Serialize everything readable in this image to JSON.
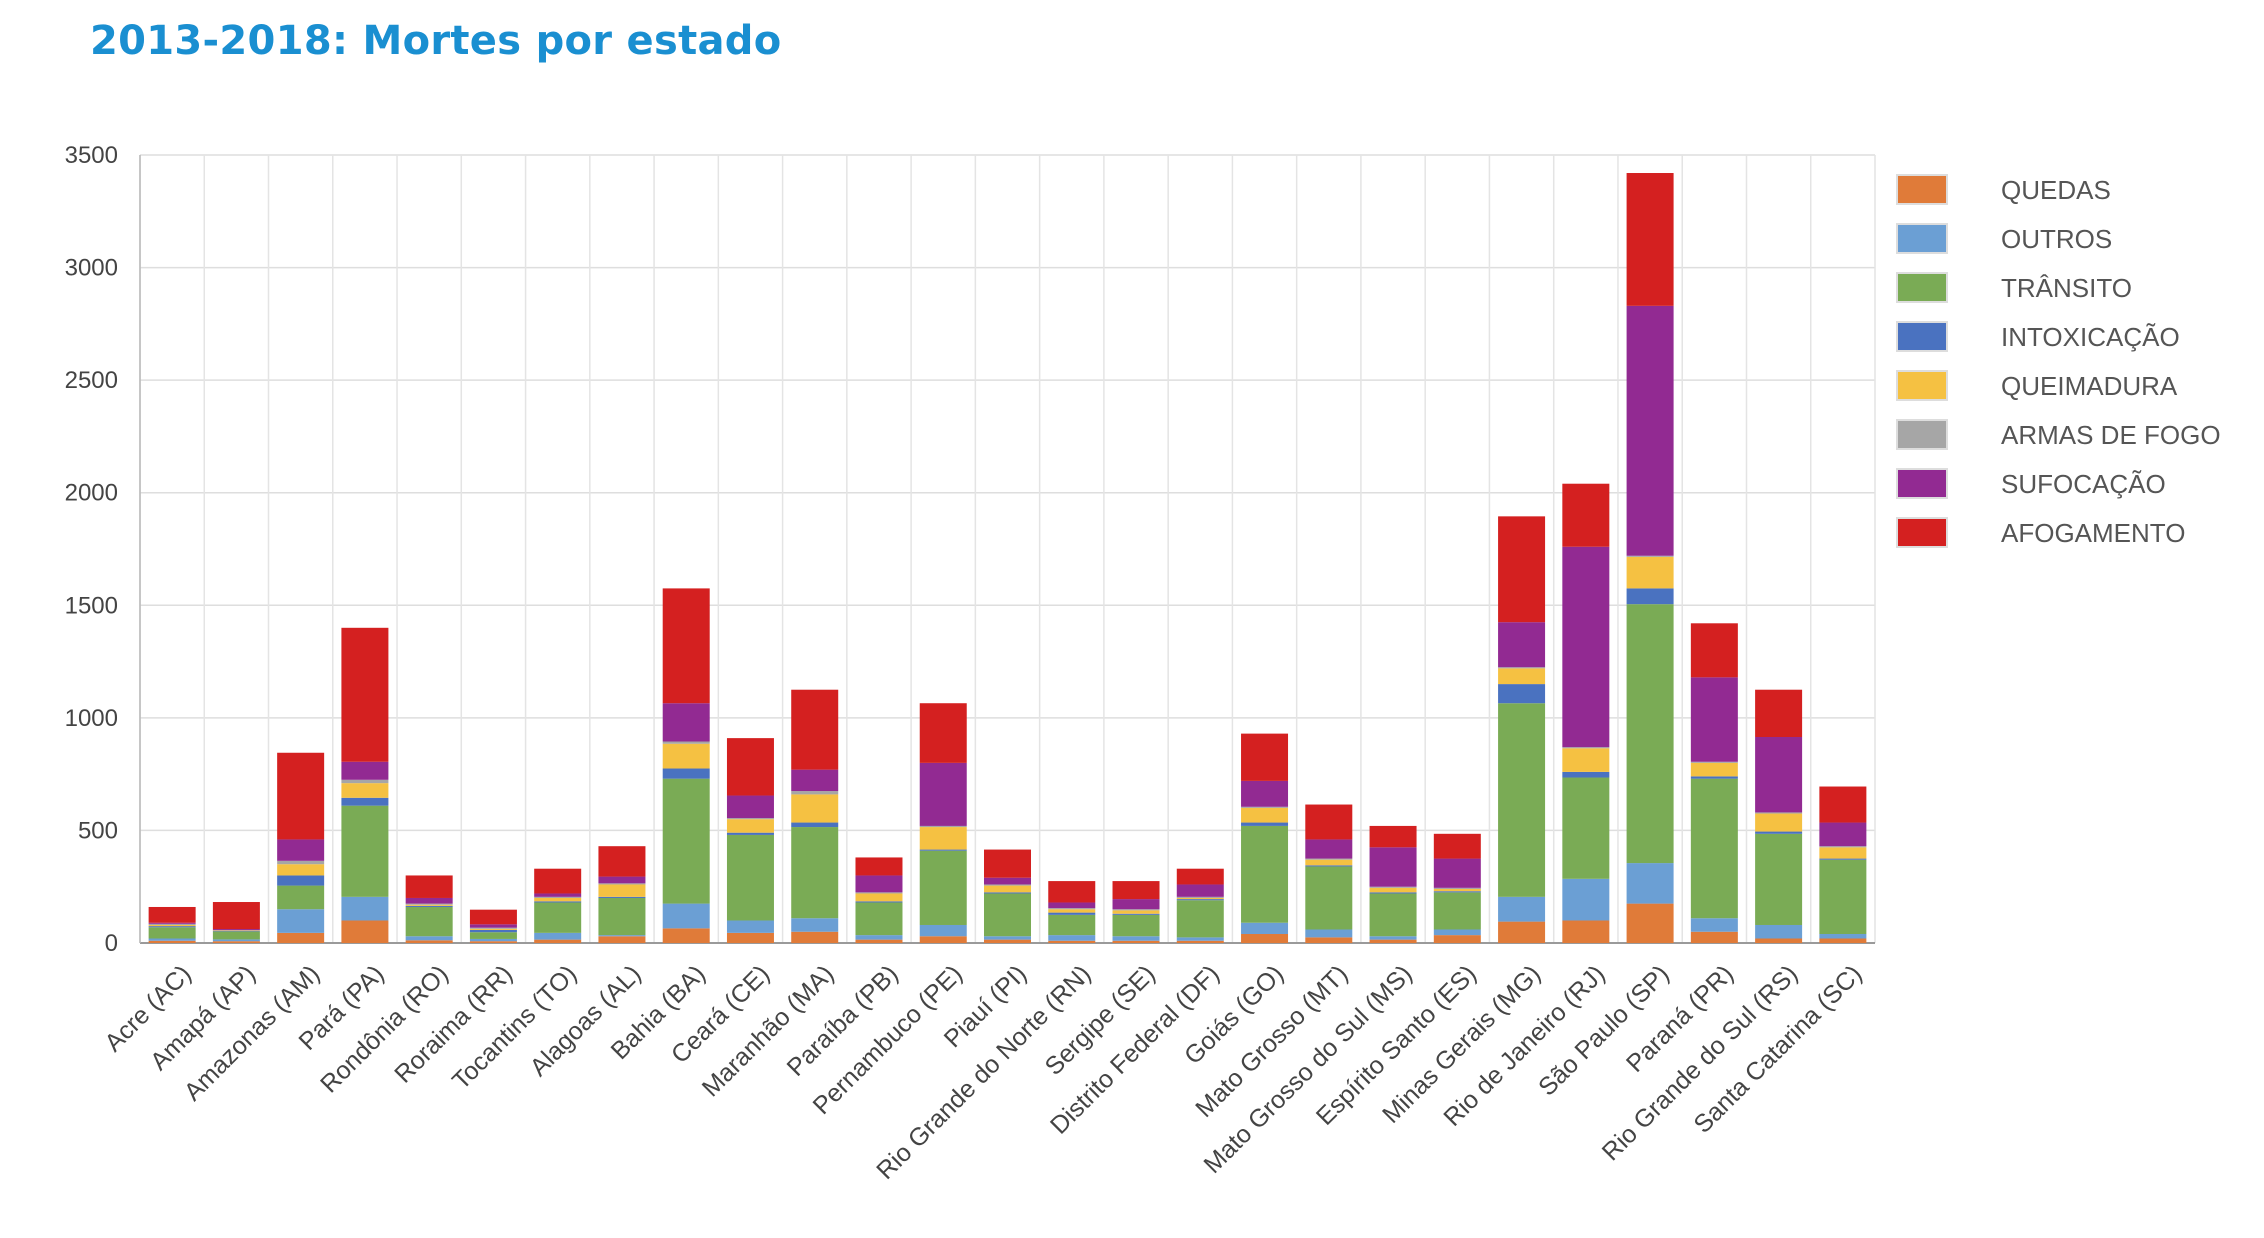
{
  "title": "2013-2018: Mortes por estado",
  "chart_data": {
    "type": "bar",
    "stacked": true,
    "ylim": [
      0,
      3500
    ],
    "yticks": [
      0,
      500,
      1000,
      1500,
      2000,
      2500,
      3000,
      3500
    ],
    "grid": true,
    "legend_position": "right",
    "categories": [
      "Acre (AC)",
      "Amapá (AP)",
      "Amazonas (AM)",
      "Pará (PA)",
      "Rondônia (RO)",
      "Roraima (RR)",
      "Tocantins (TO)",
      "Alagoas (AL)",
      "Bahia (BA)",
      "Ceará (CE)",
      "Maranhão (MA)",
      "Paraíba (PB)",
      "Pernambuco (PE)",
      "Piauí (PI)",
      "Rio Grande do Norte (RN)",
      "Sergipe (SE)",
      "Distrito Federal (DF)",
      "Goiás (GO)",
      "Mato Grosso (MT)",
      "Mato Grosso do Sul (MS)",
      "Espírito Santo (ES)",
      "Minas Gerais (MG)",
      "Rio de Janeiro (RJ)",
      "São Paulo (SP)",
      "Paraná (PR)",
      "Rio Grande do Sul (RS)",
      "Santa Catarina (SC)"
    ],
    "series": [
      {
        "name": "QUEDAS",
        "color": "#e07b39",
        "values": [
          10,
          8,
          45,
          100,
          12,
          8,
          15,
          30,
          65,
          45,
          50,
          15,
          30,
          15,
          10,
          10,
          10,
          40,
          25,
          15,
          35,
          95,
          100,
          175,
          50,
          20,
          20
        ]
      },
      {
        "name": "OUTROS",
        "color": "#6b9fd4",
        "values": [
          10,
          8,
          105,
          105,
          18,
          10,
          30,
          5,
          110,
          55,
          60,
          20,
          50,
          15,
          25,
          20,
          15,
          50,
          35,
          15,
          25,
          110,
          185,
          180,
          60,
          60,
          20
        ]
      },
      {
        "name": "TRÂNSITO",
        "color": "#7aab55",
        "values": [
          50,
          35,
          105,
          405,
          130,
          30,
          135,
          165,
          555,
          380,
          405,
          145,
          330,
          190,
          90,
          95,
          165,
          430,
          280,
          190,
          165,
          860,
          450,
          1150,
          620,
          405,
          330
        ]
      },
      {
        "name": "INTOXICAÇÃO",
        "color": "#4a72c0",
        "values": [
          5,
          2,
          45,
          35,
          5,
          10,
          5,
          5,
          45,
          10,
          20,
          5,
          5,
          5,
          10,
          5,
          5,
          15,
          5,
          5,
          5,
          85,
          25,
          70,
          10,
          10,
          5
        ]
      },
      {
        "name": "QUEIMADURA",
        "color": "#f5c142",
        "values": [
          5,
          2,
          50,
          65,
          5,
          5,
          15,
          55,
          110,
          60,
          125,
          35,
          100,
          30,
          15,
          15,
          5,
          65,
          25,
          20,
          10,
          70,
          105,
          140,
          60,
          80,
          50
        ]
      },
      {
        "name": "ARMAS DE FOGO",
        "color": "#a6a6a6",
        "values": [
          5,
          2,
          15,
          15,
          5,
          5,
          5,
          5,
          10,
          5,
          15,
          5,
          5,
          5,
          5,
          5,
          5,
          5,
          5,
          5,
          5,
          5,
          5,
          5,
          5,
          5,
          5
        ]
      },
      {
        "name": "SUFOCAÇÃO",
        "color": "#922a92",
        "values": [
          5,
          5,
          95,
          80,
          25,
          15,
          15,
          30,
          170,
          100,
          95,
          75,
          280,
          30,
          25,
          45,
          55,
          115,
          85,
          175,
          130,
          200,
          890,
          1110,
          375,
          335,
          105
        ]
      },
      {
        "name": "AFOGAMENTO",
        "color": "#d42020",
        "values": [
          70,
          120,
          385,
          595,
          100,
          65,
          110,
          135,
          510,
          255,
          355,
          80,
          265,
          125,
          95,
          80,
          70,
          210,
          155,
          95,
          110,
          470,
          280,
          590,
          240,
          210,
          160
        ]
      }
    ]
  }
}
